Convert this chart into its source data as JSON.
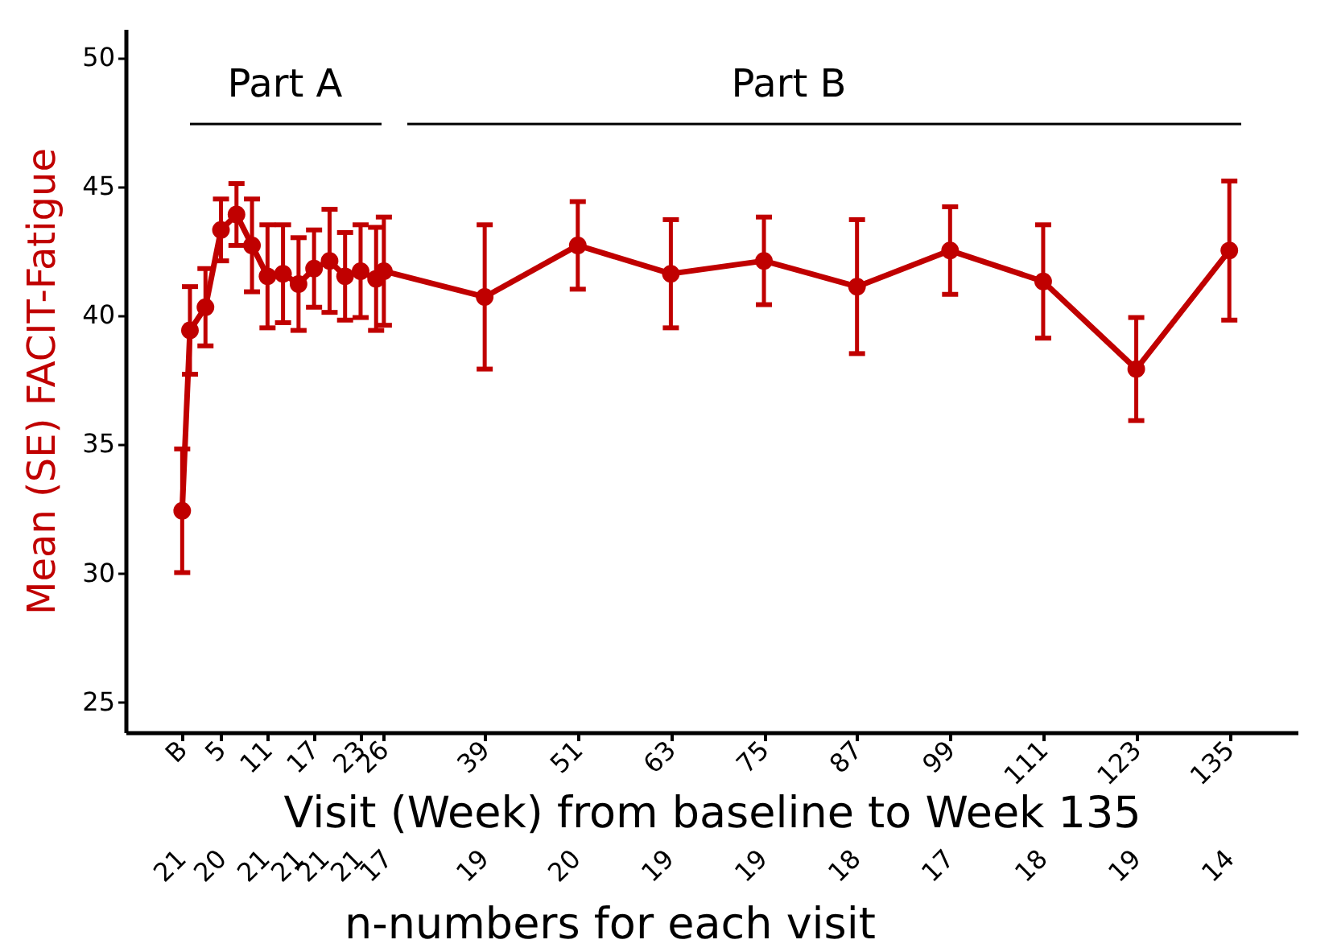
{
  "chart_data": {
    "type": "line",
    "xlabel": "Visit (Week) from baseline to Week 135",
    "ylabel": "Mean (SE) FACIT-Fatigue",
    "x": [
      0,
      1,
      3,
      5,
      7,
      9,
      11,
      13,
      15,
      17,
      19,
      21,
      23,
      25,
      26,
      39,
      51,
      63,
      75,
      87,
      99,
      111,
      123,
      135
    ],
    "series": [
      {
        "color": "#c00000",
        "values": [
          32.4,
          39.4,
          40.3,
          43.3,
          43.9,
          42.7,
          41.5,
          41.6,
          41.2,
          41.8,
          42.1,
          41.5,
          41.7,
          41.4,
          41.7,
          40.7,
          42.7,
          41.6,
          42.1,
          41.1,
          42.5,
          41.3,
          37.9,
          42.5
        ],
        "errors": [
          2.4,
          1.7,
          1.5,
          1.2,
          1.2,
          1.8,
          2.0,
          1.9,
          1.8,
          1.5,
          2.0,
          1.7,
          1.8,
          2.0,
          2.1,
          2.8,
          1.7,
          2.1,
          1.7,
          2.6,
          1.7,
          2.2,
          2.0,
          2.7
        ]
      }
    ],
    "xlim": [
      -7.3,
      143.8
    ],
    "xticks": [
      {
        "value": 0,
        "label": "B"
      },
      5,
      11,
      17,
      23,
      26,
      39,
      51,
      63,
      75,
      87,
      99,
      111,
      123,
      135
    ],
    "annotations": [
      "Part A",
      "Part B",
      "21",
      "20",
      "21",
      "21",
      "21",
      "21",
      "17",
      "19",
      "20",
      "19",
      "19",
      "18",
      "17",
      "18",
      "19",
      "14",
      "n-numbers for each visit"
    ],
    "ylim": [
      23.8,
      51.1
    ],
    "yticks": [
      25,
      30,
      35,
      40,
      45,
      50
    ],
    "grid": false,
    "marker": "circle",
    "line_style": "solid"
  }
}
